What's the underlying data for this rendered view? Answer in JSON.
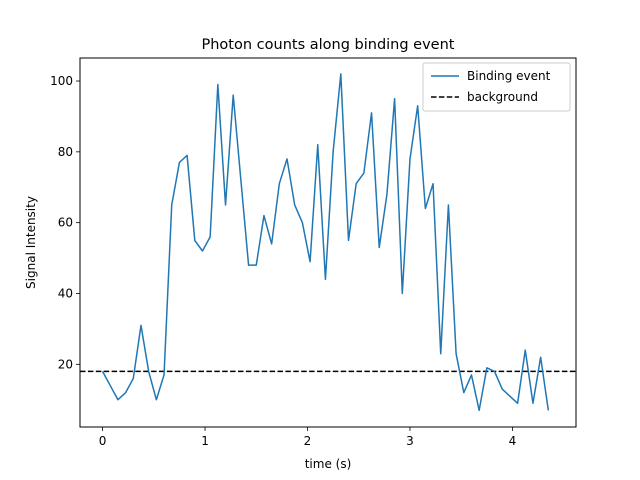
{
  "chart_data": {
    "type": "line",
    "title": "Photon counts along binding event",
    "xlabel": "time (s)",
    "ylabel": "Signal Intensity",
    "xlim": [
      -0.22,
      4.62
    ],
    "ylim": [
      2.3,
      106.5
    ],
    "xticks": [
      0,
      1,
      2,
      3,
      4
    ],
    "xtick_labels": [
      "0",
      "1",
      "2",
      "3",
      "4"
    ],
    "yticks": [
      20,
      40,
      60,
      80,
      100
    ],
    "ytick_labels": [
      "20",
      "40",
      "60",
      "80",
      "100"
    ],
    "grid": false,
    "legend_position": "top-right",
    "series": [
      {
        "name": "Binding event",
        "color": "#1f77b4",
        "style": "solid",
        "x": [
          0.0,
          0.075,
          0.15,
          0.225,
          0.3,
          0.375,
          0.45,
          0.525,
          0.6,
          0.675,
          0.75,
          0.825,
          0.9,
          0.975,
          1.05,
          1.125,
          1.2,
          1.275,
          1.35,
          1.425,
          1.5,
          1.575,
          1.65,
          1.725,
          1.8,
          1.875,
          1.95,
          2.025,
          2.1,
          2.175,
          2.25,
          2.325,
          2.4,
          2.475,
          2.55,
          2.625,
          2.7,
          2.775,
          2.85,
          2.925,
          3.0,
          3.075,
          3.15,
          3.225,
          3.3,
          3.375,
          3.45,
          3.525,
          3.6,
          3.675,
          3.75,
          3.825,
          3.9,
          3.975,
          4.05,
          4.125,
          4.2,
          4.275,
          4.35
        ],
        "y": [
          18,
          14,
          10,
          12,
          16,
          31,
          18,
          10,
          17,
          65,
          77,
          79,
          55,
          52,
          56,
          99,
          65,
          96,
          72,
          48,
          48,
          62,
          54,
          71,
          78,
          65,
          60,
          49,
          82,
          44,
          80,
          102,
          55,
          71,
          74,
          91,
          53,
          68,
          95,
          40,
          78,
          93,
          64,
          71,
          23,
          65,
          23,
          12,
          17,
          7,
          19,
          18,
          13,
          11,
          9,
          24,
          9,
          22,
          7
        ]
      },
      {
        "name": "background",
        "color": "#000000",
        "style": "dashed",
        "y": 18
      }
    ]
  }
}
